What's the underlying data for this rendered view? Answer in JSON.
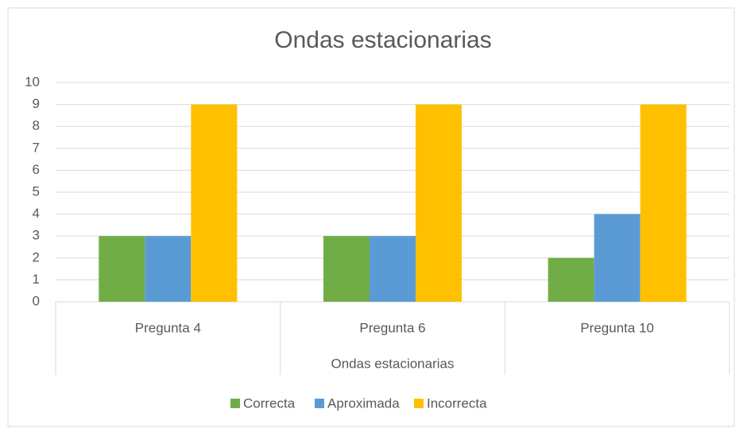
{
  "chart_data": {
    "type": "bar",
    "title": "Ondas estacionarias",
    "x_label": "Ondas estacionarias",
    "categories": [
      "Pregunta 4",
      "Pregunta 6",
      "Pregunta 10"
    ],
    "series": [
      {
        "name": "Correcta",
        "color": "#70ad47",
        "values": [
          3,
          3,
          2
        ]
      },
      {
        "name": "Aproximada",
        "color": "#5b9bd5",
        "values": [
          3,
          3,
          4
        ]
      },
      {
        "name": "Incorrecta",
        "color": "#ffc000",
        "values": [
          9,
          9,
          9
        ]
      }
    ],
    "ylim": [
      0,
      10
    ],
    "yticks": [
      0,
      1,
      2,
      3,
      4,
      5,
      6,
      7,
      8,
      9,
      10
    ],
    "grid": true,
    "legend": "bottom"
  }
}
